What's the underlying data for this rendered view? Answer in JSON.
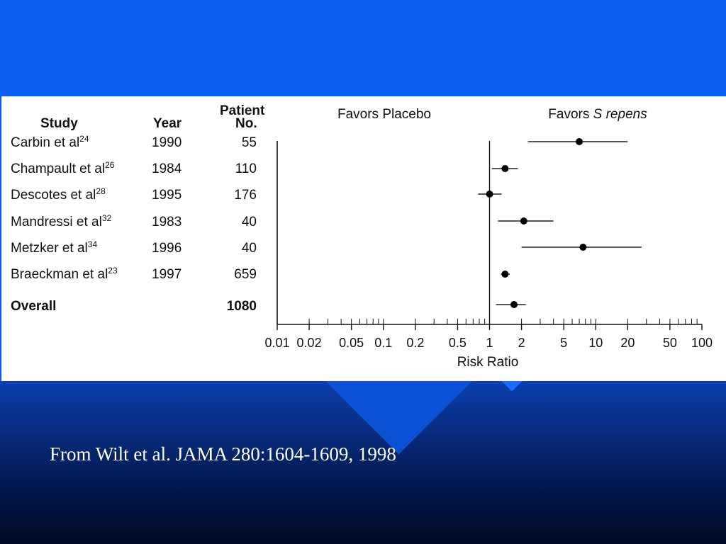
{
  "slide": {
    "caption": "From Wilt et al. JAMA 280:1604-1609, 1998",
    "colors": {
      "background": "#0b5cf0",
      "panel": "#ffffff",
      "caption": "#ffffff"
    }
  },
  "table": {
    "headers": {
      "study": "Study",
      "year": "Year",
      "patient_line1": "Patient",
      "patient_line2": "No."
    },
    "rows": [
      {
        "study": "Carbin et al",
        "ref": "24",
        "year": "1990",
        "patients": "55"
      },
      {
        "study": "Champault et al",
        "ref": "26",
        "year": "1984",
        "patients": "110"
      },
      {
        "study": "Descotes et al",
        "ref": "28",
        "year": "1995",
        "patients": "176"
      },
      {
        "study": "Mandressi et al",
        "ref": "32",
        "year": "1983",
        "patients": "40"
      },
      {
        "study": "Metzker et al",
        "ref": "34",
        "year": "1996",
        "patients": "40"
      },
      {
        "study": "Braeckman et al",
        "ref": "23",
        "year": "1997",
        "patients": "659"
      }
    ],
    "overall": {
      "label": "Overall",
      "patients": "1080"
    }
  },
  "chart_data": {
    "type": "scatter",
    "subtype": "forest-plot",
    "xscale": "log",
    "xlim": [
      0.01,
      100
    ],
    "xlabel": "Risk Ratio",
    "xticks": [
      "0.01",
      "0.02",
      "0.05",
      "0.1",
      "0.2",
      "0.5",
      "1",
      "2",
      "5",
      "10",
      "20",
      "50",
      "100"
    ],
    "reference_line": 1,
    "annotations": {
      "left": "Favors Placebo",
      "right_prefix": "Favors ",
      "right_italic": "S repens"
    },
    "points": [
      {
        "label": "Carbin et al",
        "estimate": 7.0,
        "lower": 2.3,
        "upper": 20.0
      },
      {
        "label": "Champault et al",
        "estimate": 1.4,
        "lower": 1.05,
        "upper": 1.85
      },
      {
        "label": "Descotes et al",
        "estimate": 1.0,
        "lower": 0.78,
        "upper": 1.3
      },
      {
        "label": "Mandressi et al",
        "estimate": 2.1,
        "lower": 1.2,
        "upper": 4.0
      },
      {
        "label": "Metzker et al",
        "estimate": 7.6,
        "lower": 2.0,
        "upper": 27.0
      },
      {
        "label": "Braeckman et al",
        "estimate": 1.4,
        "lower": 1.28,
        "upper": 1.55
      },
      {
        "label": "Overall",
        "estimate": 1.7,
        "lower": 1.15,
        "upper": 2.2
      }
    ]
  }
}
